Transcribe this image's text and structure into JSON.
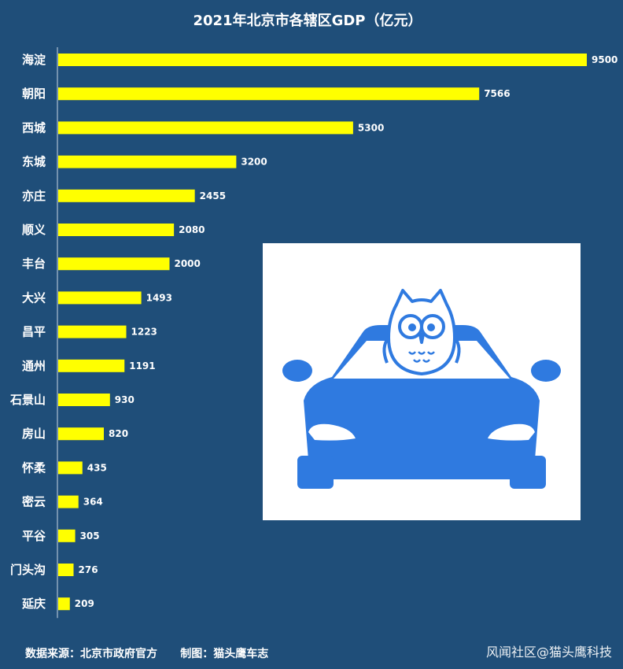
{
  "chart_data": {
    "type": "bar",
    "orientation": "horizontal",
    "title": "2021年北京市各辖区GDP（亿元）",
    "categories": [
      "海淀",
      "朝阳",
      "西城",
      "东城",
      "亦庄",
      "顺义",
      "丰台",
      "大兴",
      "昌平",
      "通州",
      "石景山",
      "房山",
      "怀柔",
      "密云",
      "平谷",
      "门头沟",
      "延庆"
    ],
    "values": [
      9500,
      7566,
      5300,
      3200,
      2455,
      2080,
      2000,
      1493,
      1223,
      1191,
      930,
      820,
      435,
      364,
      305,
      276,
      209
    ],
    "xlim": [
      0,
      9500
    ],
    "grid": false,
    "bar_color": "#ffff00",
    "axis_color": "#c9d6e3"
  },
  "footer": {
    "source": "数据来源：北京市政府官方      制图：猫头鹰车志",
    "watermark": "风闻社区@猫头鹰科技"
  },
  "logo": {
    "icon": "owl-on-car-icon",
    "color": "#2f7ae0"
  }
}
